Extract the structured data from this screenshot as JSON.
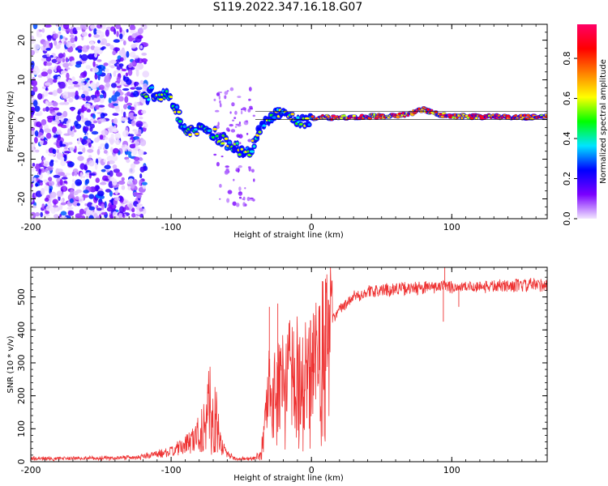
{
  "title": "S119.2022.347.16.18.G07",
  "colorbar": {
    "label": "Normalized spectral amplitude",
    "ticks": [
      0.0,
      0.2,
      0.4,
      0.6,
      0.8
    ],
    "tick_labels": [
      "0.0",
      "0.2",
      "0.4",
      "0.6",
      "0.8"
    ],
    "range": [
      0,
      0.97
    ],
    "colormap": [
      "#f2e6ff",
      "#7a00ff",
      "#0000ff",
      "#00e5ff",
      "#00ff00",
      "#ffff00",
      "#ff7f00",
      "#ff0000",
      "#ff0066"
    ]
  },
  "chart_data": [
    {
      "type": "heatmap",
      "xlabel": "Height of straight line (km)",
      "ylabel": "Frequency (Hz)",
      "xlim": [
        -200,
        168
      ],
      "ylim": [
        -25,
        24
      ],
      "xticks": [
        -200,
        -100,
        0,
        100
      ],
      "xtick_labels": [
        "-200",
        "-100",
        "0",
        "100"
      ],
      "yticks": [
        -20,
        -10,
        0,
        10,
        20
      ],
      "ytick_labels": [
        "-20",
        "-10",
        "0",
        "10",
        "20"
      ],
      "ridge": {
        "x": [
          -120,
          -115,
          -110,
          -105,
          -100,
          -95,
          -90,
          -85,
          -80,
          -75,
          -70,
          -65,
          -60,
          -55,
          -50,
          -45,
          -40,
          -35,
          -30,
          -25,
          -20,
          -15,
          -10,
          -5,
          0,
          10,
          20,
          30,
          40,
          50,
          60,
          70,
          80,
          85,
          90,
          95,
          100,
          110,
          120,
          130,
          140,
          150,
          160,
          168
        ],
        "y": [
          5,
          6.5,
          7,
          6,
          5.5,
          1,
          -2,
          -3,
          -2,
          -3,
          -3.5,
          -5,
          -6,
          -7,
          -8,
          -8.5,
          -6,
          -1,
          -0.5,
          1,
          2.5,
          1.5,
          0,
          -1,
          0.5,
          0.5,
          0.5,
          0.6,
          0.7,
          0.9,
          1.0,
          1.5,
          2.5,
          2.0,
          1.5,
          1.0,
          0.9,
          0.8,
          0.7,
          0.7,
          0.6,
          0.6,
          0.6,
          0.6
        ]
      },
      "reference_lines": [
        {
          "x": [
            -40,
            168
          ],
          "y": [
            2,
            2
          ]
        },
        {
          "x": [
            -40,
            168
          ],
          "y": [
            0,
            0
          ]
        }
      ]
    },
    {
      "type": "line",
      "xlabel": "Height of straight line (km)",
      "ylabel": "SNR (10 * v/v)",
      "xlim": [
        -200,
        168
      ],
      "ylim": [
        0,
        590
      ],
      "xticks": [
        -200,
        -100,
        0,
        100
      ],
      "xtick_labels": [
        "-200",
        "-100",
        "0",
        "100"
      ],
      "yticks": [
        0,
        100,
        200,
        300,
        400,
        500
      ],
      "ytick_labels": [
        "0",
        "100",
        "200",
        "300",
        "400",
        "500"
      ],
      "color": "#ee3333",
      "envelope": {
        "x": [
          -200,
          -150,
          -120,
          -100,
          -90,
          -80,
          -75,
          -72,
          -68,
          -65,
          -60,
          -55,
          -50,
          -45,
          -40,
          -36,
          -33,
          -30,
          -28,
          -25,
          -22,
          -20,
          -18,
          -15,
          -12,
          -10,
          -8,
          -5,
          -2,
          0,
          2,
          5,
          8,
          10,
          15,
          20,
          25,
          30,
          40,
          50,
          60,
          70,
          80,
          90,
          100,
          110,
          120,
          130,
          140,
          150,
          160,
          168
        ],
        "y": [
          10,
          10,
          15,
          30,
          50,
          85,
          130,
          160,
          120,
          60,
          25,
          10,
          8,
          8,
          10,
          30,
          120,
          260,
          150,
          330,
          250,
          300,
          260,
          310,
          280,
          330,
          270,
          320,
          290,
          300,
          340,
          360,
          380,
          400,
          430,
          460,
          480,
          500,
          515,
          520,
          525,
          525,
          528,
          530,
          530,
          530,
          532,
          533,
          534,
          535,
          537,
          538
        ]
      },
      "spikes": [
        {
          "x": -74,
          "y": 235
        },
        {
          "x": -30,
          "y": 470
        },
        {
          "x": -24,
          "y": 480
        },
        {
          "x": 10,
          "y": 555
        },
        {
          "x": 95,
          "y": 590
        },
        {
          "x": 94,
          "y": 425
        },
        {
          "x": 105,
          "y": 470
        }
      ]
    }
  ]
}
